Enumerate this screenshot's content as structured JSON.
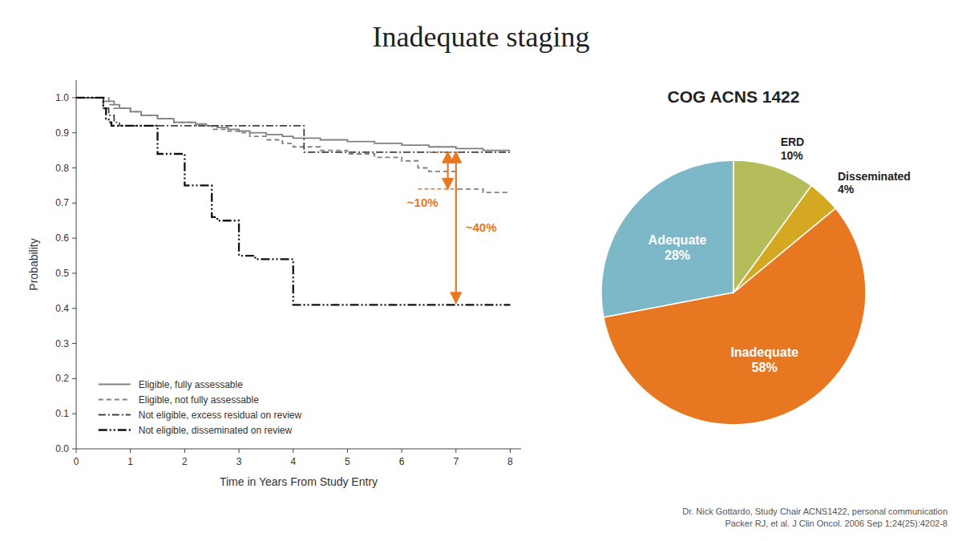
{
  "chart_data": [
    {
      "type": "step",
      "title": "Inadequate staging",
      "x_label": "Time in Years From Study Entry",
      "y_label": "Probability",
      "xlim": [
        0,
        8.2
      ],
      "ylim": [
        0.0,
        1.05
      ],
      "xticks": [
        0,
        1,
        2,
        3,
        4,
        5,
        6,
        7,
        8
      ],
      "yticks": [
        {
          "value": 0.0,
          "label": "0.0"
        },
        0.1,
        0.2,
        0.3,
        0.4,
        0.5,
        0.6,
        0.7,
        0.8,
        0.9,
        {
          "value": 1.0,
          "label": "1.0"
        }
      ],
      "grid": false,
      "legend": "lower left",
      "series": [
        {
          "name": "Eligible, fully assessable",
          "color": "#808080",
          "line_style": "solid",
          "x": [
            0,
            0.4,
            0.5,
            0.6,
            0.7,
            0.8,
            0.9,
            1.0,
            1.1,
            1.2,
            1.3,
            1.5,
            1.6,
            1.8,
            2.0,
            2.2,
            2.4,
            2.6,
            2.8,
            3.0,
            3.2,
            3.5,
            3.8,
            4.0,
            4.5,
            5.0,
            5.5,
            6.0,
            6.5,
            7.0,
            7.5,
            8.0
          ],
          "values": [
            1.0,
            1.0,
            0.99,
            0.99,
            0.98,
            0.97,
            0.97,
            0.96,
            0.96,
            0.95,
            0.95,
            0.94,
            0.94,
            0.93,
            0.93,
            0.925,
            0.92,
            0.915,
            0.91,
            0.905,
            0.9,
            0.895,
            0.89,
            0.885,
            0.88,
            0.875,
            0.87,
            0.865,
            0.86,
            0.855,
            0.85,
            0.85
          ]
        },
        {
          "name": "Eligible, not fully assessable",
          "color": "#808080",
          "line_style": "dashed",
          "x": [
            0,
            0.5,
            0.6,
            0.7,
            0.8,
            1.0,
            1.1,
            1.2,
            1.3,
            1.5,
            1.7,
            1.8,
            2.0,
            2.2,
            2.5,
            2.8,
            3.0,
            3.2,
            3.5,
            3.8,
            4.0,
            4.5,
            5.0,
            5.5,
            6.0,
            6.3,
            6.5,
            7.0,
            7.5,
            8.0
          ],
          "values": [
            1.0,
            1.0,
            0.98,
            0.97,
            0.97,
            0.96,
            0.96,
            0.95,
            0.95,
            0.94,
            0.94,
            0.93,
            0.93,
            0.92,
            0.91,
            0.905,
            0.9,
            0.89,
            0.88,
            0.87,
            0.86,
            0.85,
            0.84,
            0.83,
            0.82,
            0.8,
            0.79,
            0.74,
            0.73,
            0.73
          ]
        },
        {
          "name": "Not eligible, excess residual on review",
          "color": "#404040",
          "line_style": "dashdot",
          "x": [
            0,
            0.4,
            0.5,
            0.6,
            0.7,
            0.8,
            0.9,
            1.0,
            1.5,
            1.8,
            2.0,
            2.5,
            3.0,
            3.5,
            4.0,
            4.2,
            4.5,
            5.0,
            5.5,
            6.0,
            6.5,
            7.0,
            7.5,
            8.0
          ],
          "values": [
            1.0,
            1.0,
            0.97,
            0.95,
            0.93,
            0.92,
            0.92,
            0.92,
            0.92,
            0.92,
            0.92,
            0.92,
            0.92,
            0.92,
            0.92,
            0.845,
            0.845,
            0.845,
            0.845,
            0.845,
            0.845,
            0.845,
            0.845,
            0.845
          ]
        },
        {
          "name": "Not eligible, disseminated on review",
          "color": "#101010",
          "line_style": "dashdotdot",
          "x": [
            0,
            0.4,
            0.5,
            0.55,
            0.6,
            0.65,
            0.7,
            0.8,
            0.9,
            1.0,
            1.5,
            2.0,
            2.5,
            2.6,
            3.0,
            3.3,
            3.5,
            4.0,
            4.1,
            4.2,
            5.0,
            5.5,
            6.0,
            6.5,
            7.0,
            7.5,
            8.0
          ],
          "values": [
            1.0,
            1.0,
            0.97,
            0.94,
            0.93,
            0.92,
            0.92,
            0.92,
            0.92,
            0.92,
            0.84,
            0.75,
            0.66,
            0.65,
            0.55,
            0.54,
            0.54,
            0.41,
            0.41,
            0.41,
            0.41,
            0.41,
            0.41,
            0.41,
            0.41,
            0.41,
            0.41
          ]
        }
      ],
      "reference_lines": [
        {
          "y": 0.845,
          "x_from": 6.5,
          "x_to": 7.1,
          "color": "#e87722"
        },
        {
          "y": 0.74,
          "x_from": 6.3,
          "x_to": 7.1,
          "color": "#e87722"
        }
      ],
      "annotations": [
        {
          "text": "~10%",
          "x": 6.85,
          "y_from": 0.74,
          "y_to": 0.845,
          "color": "#e87722"
        },
        {
          "text": "~40%",
          "x": 7.0,
          "y_from": 0.415,
          "y_to": 0.845,
          "color": "#e87722"
        }
      ]
    },
    {
      "type": "pie",
      "title": "COG ACNS 1422",
      "categories": [
        "Adequate",
        "Inadequate",
        "Disseminated",
        "ERD"
      ],
      "values": [
        28,
        58,
        4,
        10
      ],
      "value_labels": [
        "28%",
        "58%",
        "4%",
        "10%"
      ],
      "data_labels": true,
      "colors": [
        "#7cb8c8",
        "#e87722",
        "#d4a820",
        "#b5bc5a"
      ],
      "caption": "Dr. Nick Gottardo, Study Chair ACNS1422, personal communication\nPacker RJ, et al. J Clin Oncol. 2006 Sep 1;24(25):4202-8"
    }
  ]
}
